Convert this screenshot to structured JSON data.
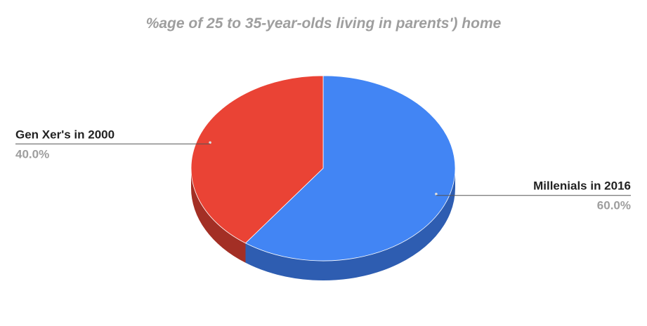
{
  "chart_data": {
    "type": "pie",
    "title": "%age of 25 to 35-year-olds living in parents') home",
    "slices": [
      {
        "label": "Millenials in 2016",
        "value": 60.0,
        "value_label": "60.0%",
        "color": "#4285f4",
        "side_color": "#2e5db1"
      },
      {
        "label": "Gen Xer's in 2000",
        "value": 40.0,
        "value_label": "40.0%",
        "color": "#ea4335",
        "side_color": "#a32f25"
      }
    ],
    "style": "3d",
    "legend": "labels-outside"
  }
}
